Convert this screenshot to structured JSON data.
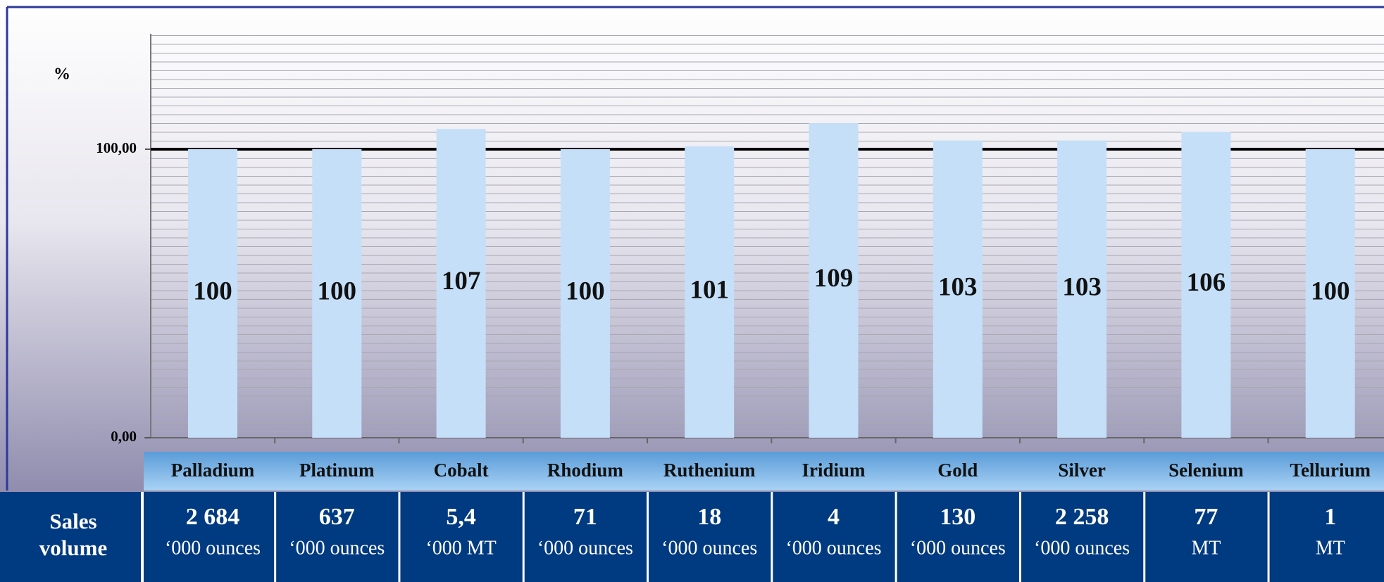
{
  "chart_data": {
    "type": "bar",
    "y_label": "%",
    "categories": [
      "Palladium",
      "Platinum",
      "Cobalt",
      "Rhodium",
      "Ruthenium",
      "Iridium",
      "Gold",
      "Silver",
      "Selenium",
      "Tellurium"
    ],
    "values": [
      100,
      100,
      107,
      100,
      101,
      109,
      103,
      103,
      106,
      100
    ],
    "color": "#c5dff8",
    "ylim": [
      0,
      140
    ],
    "yticks": [
      {
        "value": 0,
        "label": "0,00"
      },
      {
        "value": 100,
        "label": "100,00"
      }
    ],
    "grid": true
  },
  "table": {
    "row_label": "Sales volume",
    "cells": [
      {
        "amount": "2 684",
        "unit": "‘000 ounces"
      },
      {
        "amount": "637",
        "unit": "‘000 ounces"
      },
      {
        "amount": "5,4",
        "unit": "‘000 MT"
      },
      {
        "amount": "71",
        "unit": "‘000 ounces"
      },
      {
        "amount": "18",
        "unit": "‘000 ounces"
      },
      {
        "amount": "4",
        "unit": "‘000 ounces"
      },
      {
        "amount": "130",
        "unit": "‘000 ounces"
      },
      {
        "amount": "2 258",
        "unit": "‘000 ounces"
      },
      {
        "amount": "77",
        "unit": "MT"
      },
      {
        "amount": "1",
        "unit": "MT"
      }
    ]
  }
}
